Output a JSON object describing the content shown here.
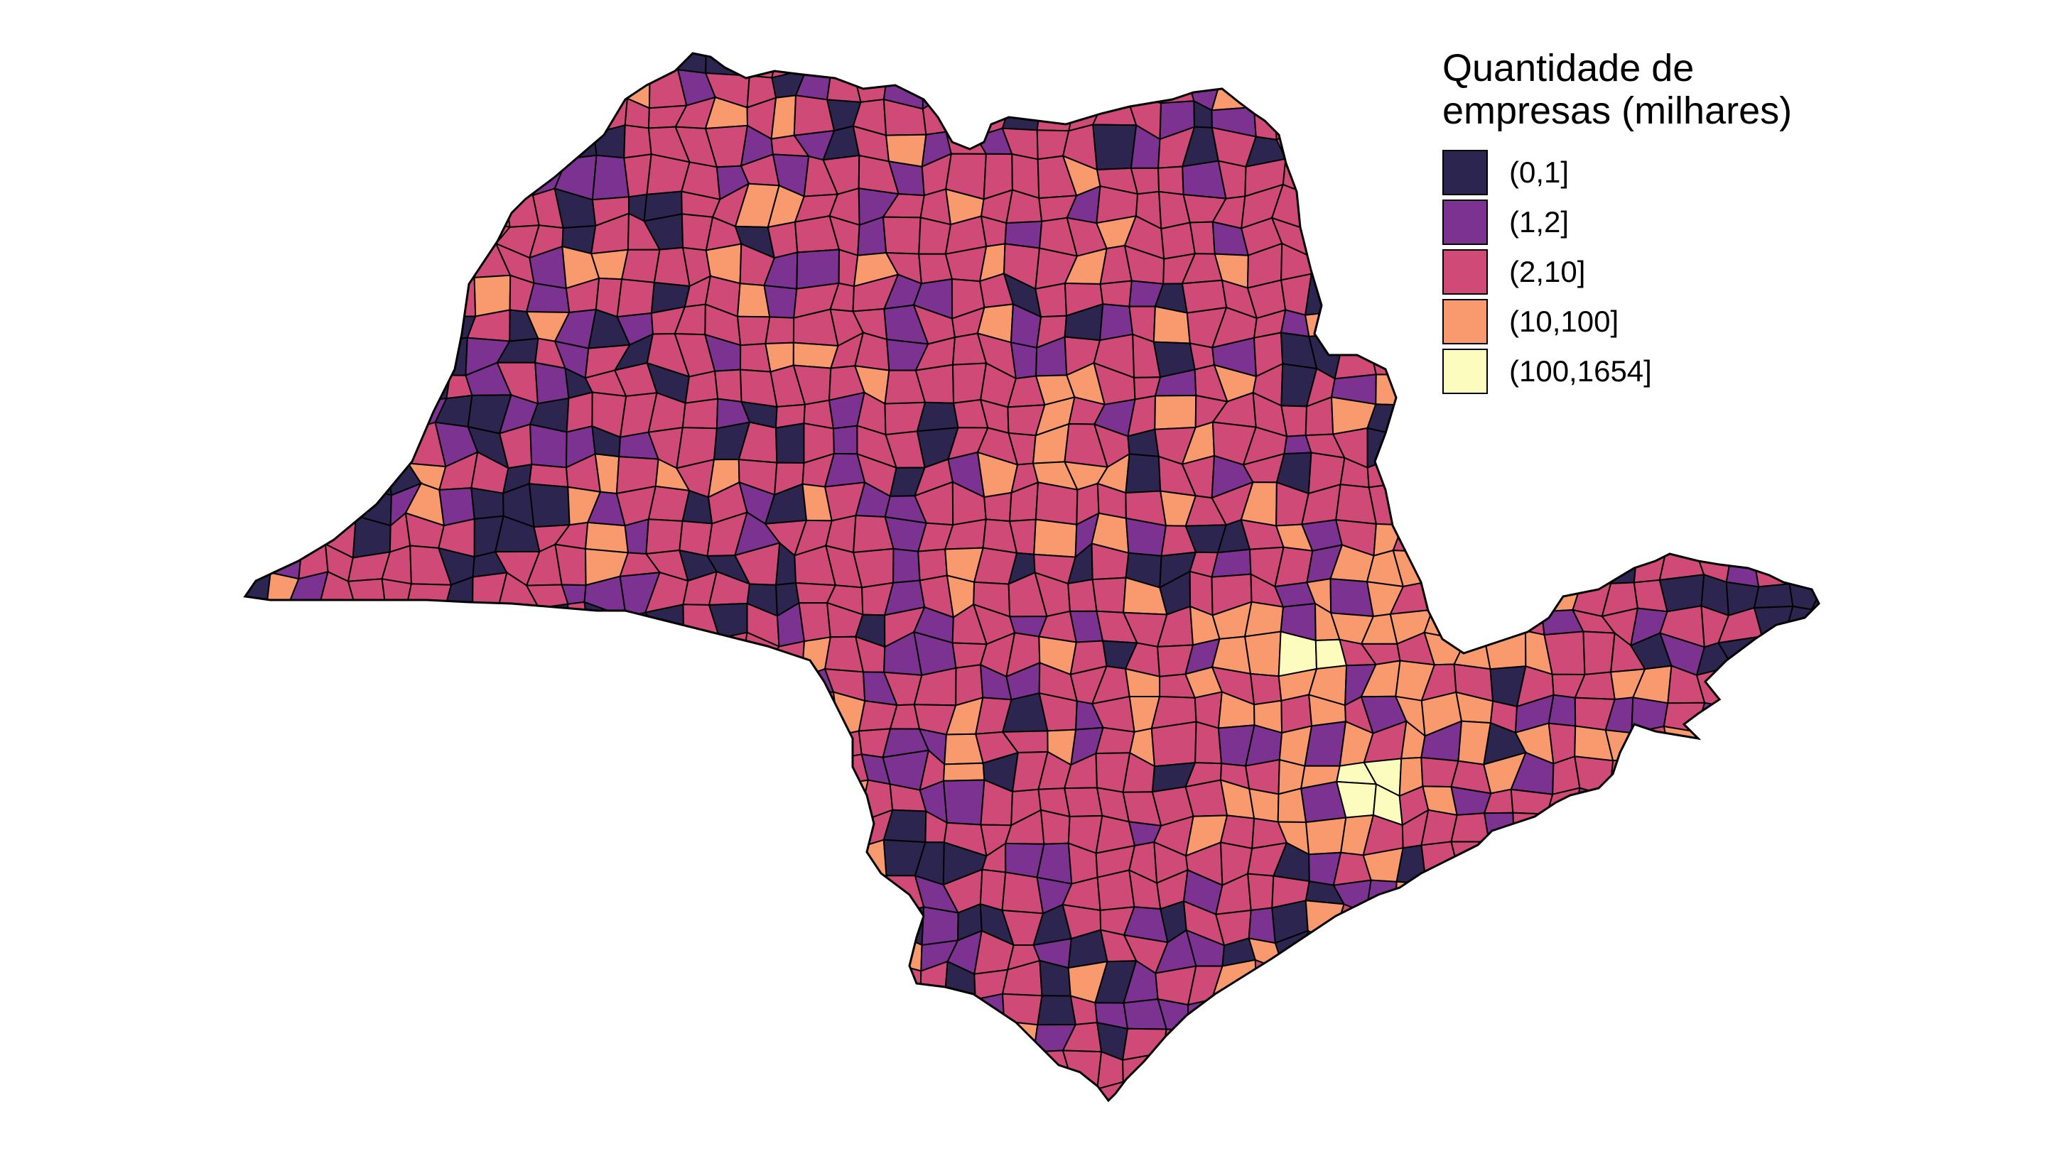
{
  "legend": {
    "title_line1": "Quantidade de",
    "title_line2": "empresas (milhares)",
    "items": [
      {
        "label": "(0,1]",
        "color": "#2b2550"
      },
      {
        "label": "(1,2]",
        "color": "#7b3290"
      },
      {
        "label": "(2,10]",
        "color": "#cf4a77"
      },
      {
        "label": "(10,100]",
        "color": "#f8996e"
      },
      {
        "label": "(100,1654]",
        "color": "#fdfcbf"
      }
    ]
  },
  "map": {
    "region": "São Paulo state municipalities",
    "highlight_city_class": 4,
    "secondary_city_class": 4
  }
}
